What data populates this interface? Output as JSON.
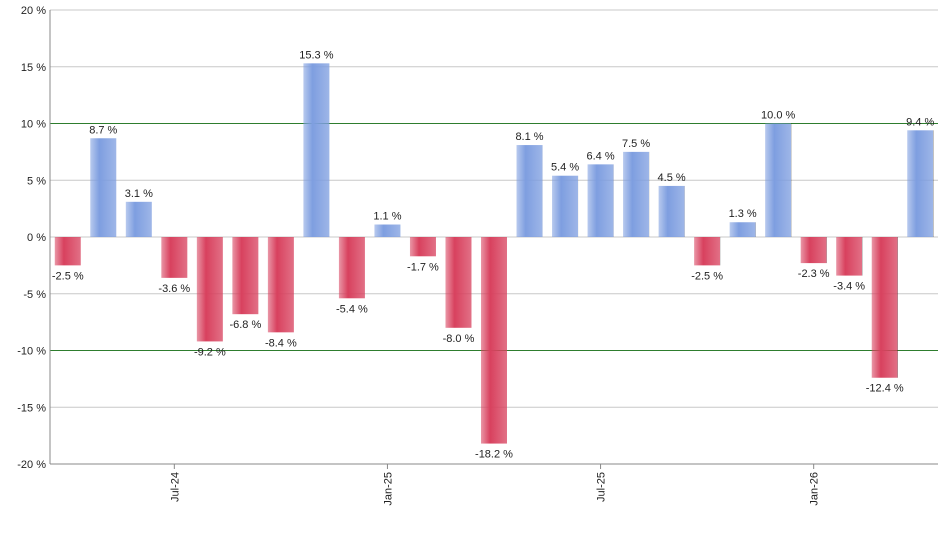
{
  "chart_data": {
    "type": "bar",
    "categories": [
      null,
      null,
      null,
      "Jul-24",
      null,
      null,
      null,
      null,
      null,
      "Jan-25",
      null,
      null,
      null,
      null,
      null,
      "Jul-25",
      null,
      null,
      null,
      null,
      null,
      "Jan-26",
      null,
      null,
      null
    ],
    "values": [
      -2.5,
      8.7,
      3.1,
      -3.6,
      -9.2,
      -6.8,
      -8.4,
      15.3,
      -5.4,
      1.1,
      -1.7,
      -8.0,
      -18.2,
      8.1,
      5.4,
      6.4,
      7.5,
      4.5,
      -2.5,
      1.3,
      10.0,
      -2.3,
      -3.4,
      -12.4,
      9.4
    ],
    "value_labels": [
      "-2.5 %",
      "8.7 %",
      "3.1 %",
      "-3.6 %",
      "-9.2 %",
      "-6.8 %",
      "-8.4 %",
      "15.3 %",
      "-5.4 %",
      "1.1 %",
      "-1.7 %",
      "-8.0 %",
      "-18.2 %",
      "8.1 %",
      "5.4 %",
      "6.4 %",
      "7.5 %",
      "4.5 %",
      "-2.5 %",
      "1.3 %",
      "10.0 %",
      "-2.3 %",
      "-3.4 %",
      "-12.4 %",
      "9.4 %"
    ],
    "positive_color": "#7e9ee0",
    "negative_color": "#d8415e",
    "ylim": [
      -20,
      20
    ],
    "yticks": [
      {
        "value": -20,
        "label": "-20 %"
      },
      {
        "value": -15,
        "label": "-15 %"
      },
      {
        "value": -10,
        "label": "-10 %"
      },
      {
        "value": -5,
        "label": "-5 %"
      },
      {
        "value": 0,
        "label": "0 %"
      },
      {
        "value": 5,
        "label": "5 %"
      },
      {
        "value": 10,
        "label": "10 %"
      },
      {
        "value": 15,
        "label": "15 %"
      },
      {
        "value": 20,
        "label": "20 %"
      }
    ],
    "reference_lines": [
      10,
      -10
    ],
    "reference_color": "#2e7d2e",
    "grid": true
  }
}
